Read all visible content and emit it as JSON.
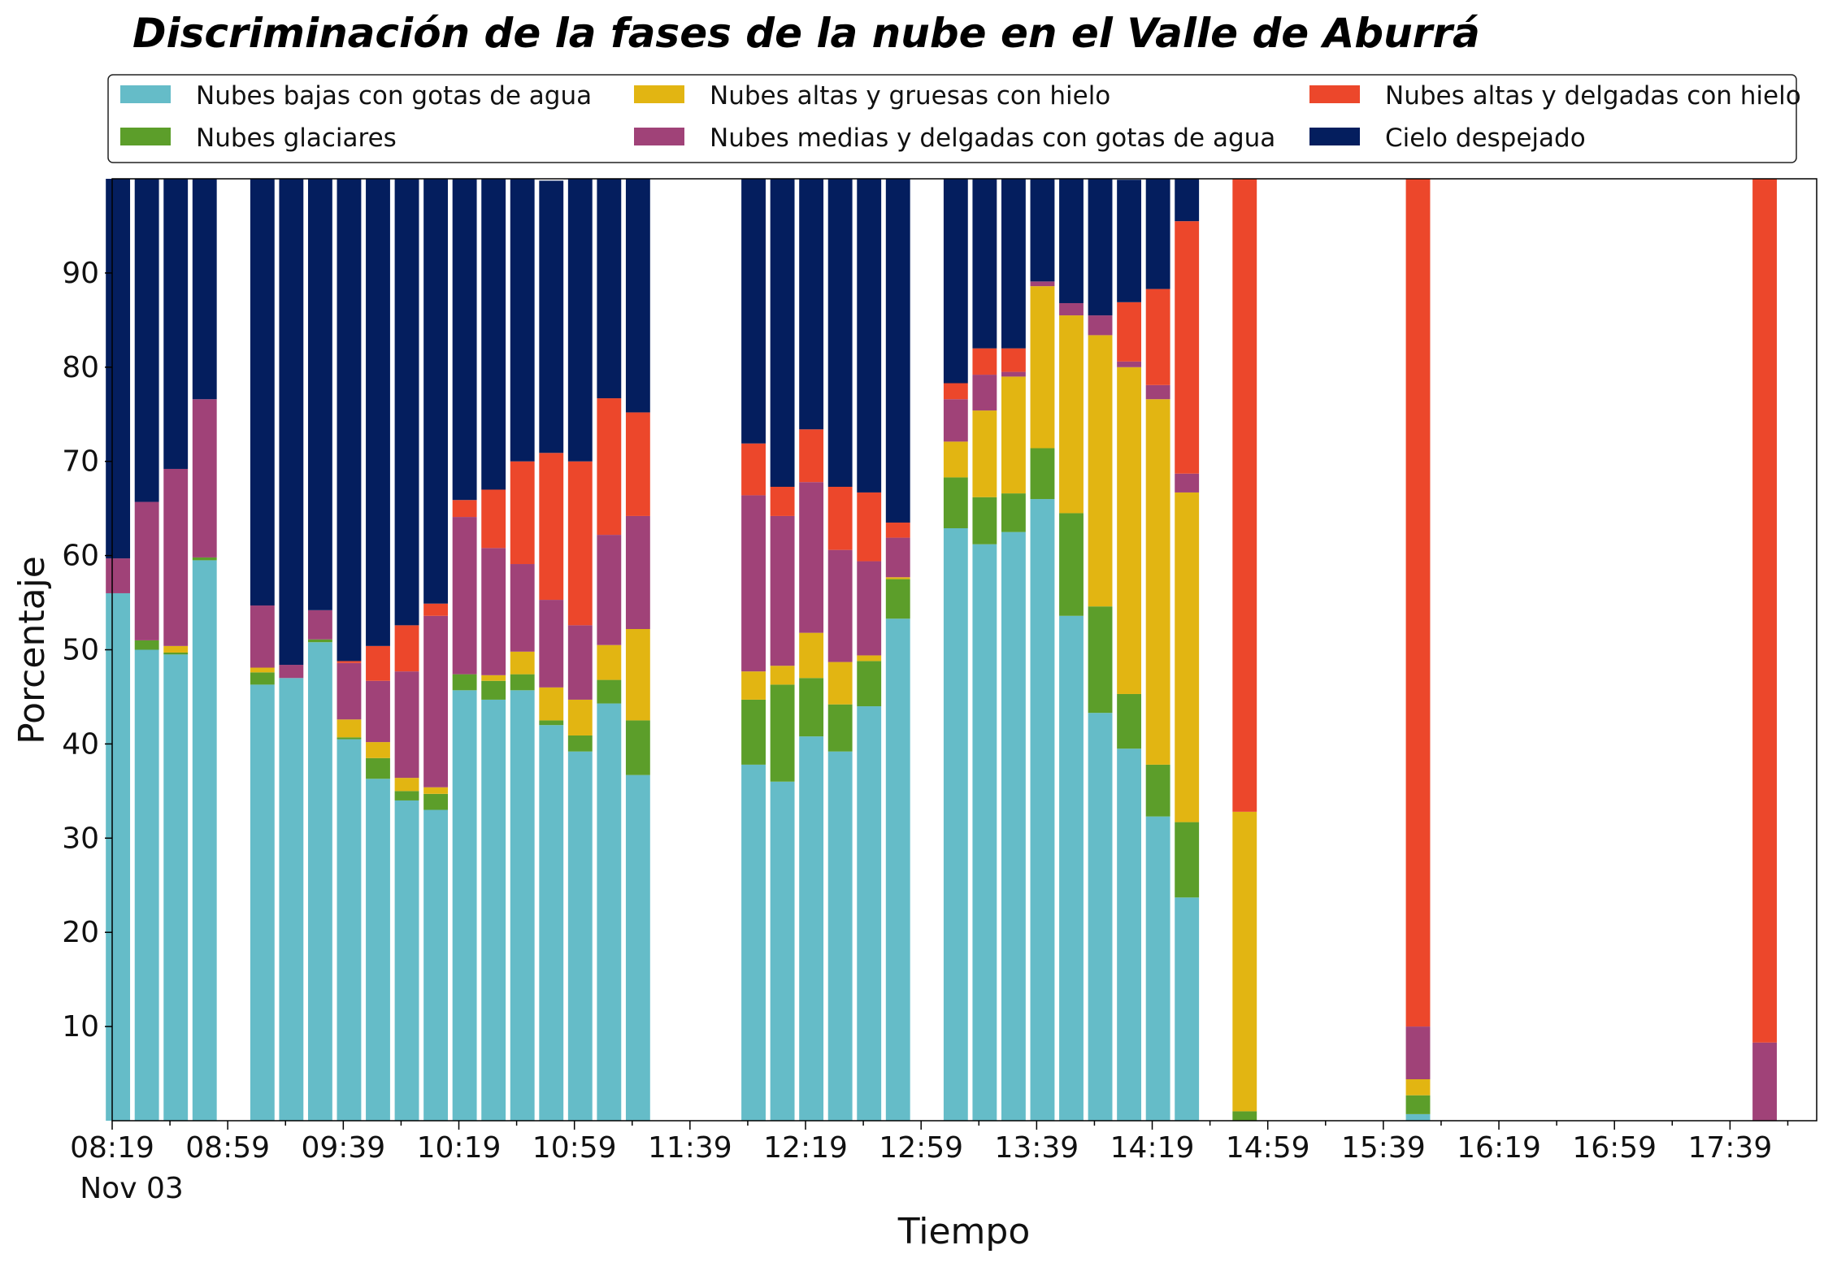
{
  "chart_data": {
    "type": "bar",
    "stacked": true,
    "title": "Discriminación de la fases de la nube en el Valle de Aburrá",
    "xlabel": "Tiempo",
    "ylabel": "Porcentaje",
    "ylim": [
      0,
      100
    ],
    "yticks": [
      10,
      20,
      30,
      40,
      50,
      60,
      70,
      80,
      90
    ],
    "x_start": "08:19",
    "x_end": "18:09",
    "x_tick_labels": [
      "08:19",
      "08:59",
      "09:39",
      "10:19",
      "10:59",
      "11:39",
      "12:19",
      "12:59",
      "13:39",
      "14:19",
      "14:59",
      "15:39",
      "16:19",
      "16:59",
      "17:39"
    ],
    "x_sublabel": "Nov 03",
    "grid": false,
    "legend_position": "top",
    "times": [
      "08:21",
      "08:31",
      "08:41",
      "08:51",
      "09:11",
      "09:21",
      "09:31",
      "09:41",
      "09:51",
      "10:01",
      "10:11",
      "10:21",
      "10:31",
      "10:41",
      "10:51",
      "11:01",
      "11:11",
      "11:21",
      "12:01",
      "12:11",
      "12:21",
      "12:31",
      "12:41",
      "12:51",
      "13:11",
      "13:21",
      "13:31",
      "13:41",
      "13:51",
      "14:01",
      "14:11",
      "14:21",
      "14:31",
      "14:51",
      "15:51",
      "17:51"
    ],
    "series": [
      {
        "name": "Nubes bajas con gotas de agua",
        "color": "#65BCC8",
        "values": [
          56,
          50,
          49.5,
          59.5,
          46.3,
          47,
          50.8,
          40.5,
          36.3,
          34,
          33,
          45.7,
          44.7,
          45.7,
          42,
          39.2,
          44.3,
          36.7,
          37.8,
          36,
          40.8,
          39.2,
          44,
          53.3,
          62.9,
          61.2,
          62.5,
          66,
          53.6,
          43.3,
          39.5,
          32.3,
          23.7,
          0,
          0.7,
          0
        ]
      },
      {
        "name": "Nubes glaciares",
        "color": "#5C9E2A",
        "values": [
          0,
          1,
          0.2,
          0.3,
          1.3,
          0,
          0.3,
          0.2,
          2.2,
          1,
          1.7,
          1.7,
          2,
          1.7,
          0.5,
          1.7,
          2.5,
          5.8,
          6.9,
          10.3,
          6.2,
          5,
          4.8,
          4.2,
          5.4,
          5,
          4.1,
          5.4,
          10.9,
          11.3,
          5.8,
          5.5,
          8,
          1,
          2,
          0
        ]
      },
      {
        "name": "Nubes altas y gruesas con hielo",
        "color": "#E2B512",
        "values": [
          0,
          0,
          0.7,
          0,
          0.5,
          0,
          0,
          1.9,
          1.7,
          1.4,
          0.7,
          0,
          0.6,
          2.4,
          3.5,
          3.8,
          3.7,
          9.7,
          3,
          2,
          4.8,
          4.5,
          0.6,
          0.2,
          3.8,
          9.2,
          12.4,
          17.2,
          21,
          28.8,
          34.7,
          38.8,
          35,
          31.8,
          1.7,
          0
        ]
      },
      {
        "name": "Nubes medias y delgadas con gotas de agua",
        "color": "#A04278",
        "values": [
          3.7,
          14.7,
          18.8,
          16.8,
          6.6,
          1.4,
          3.1,
          6,
          6.5,
          11.3,
          18.2,
          16.7,
          13.5,
          9.3,
          9.3,
          7.9,
          11.7,
          12,
          18.7,
          15.9,
          16,
          11.9,
          10,
          4.2,
          4.5,
          3.8,
          0.5,
          0.5,
          1.3,
          2.1,
          0.6,
          1.5,
          2,
          0,
          5.6,
          8.3
        ]
      },
      {
        "name": "Nubes altas y delgadas con hielo",
        "color": "#EC472B",
        "values": [
          0,
          0,
          0,
          0,
          0,
          0,
          0,
          0.2,
          3.7,
          4.9,
          1.3,
          1.8,
          6.2,
          10.9,
          15.6,
          17.4,
          14.5,
          11,
          5.5,
          3.1,
          5.6,
          6.7,
          7.3,
          1.6,
          1.7,
          2.8,
          2.5,
          0,
          0,
          0,
          6.3,
          10.2,
          26.8,
          67.2,
          90,
          91.7
        ]
      },
      {
        "name": "Cielo despejado",
        "color": "#041E5E",
        "values": [
          40.3,
          34.3,
          30.8,
          23.4,
          45.3,
          51.6,
          45.8,
          51.2,
          49.6,
          47.4,
          45.1,
          34.1,
          33,
          30,
          28.9,
          30,
          23.3,
          24.8,
          28.1,
          32.7,
          26.6,
          32.7,
          33.3,
          36.5,
          21.7,
          18,
          18,
          10.9,
          13.2,
          14.5,
          13,
          11.7,
          4.5,
          0,
          0,
          0
        ]
      }
    ]
  }
}
